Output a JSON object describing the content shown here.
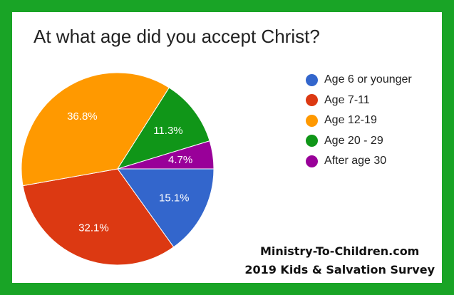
{
  "chart_data": {
    "type": "pie",
    "title": "At what age did you accept Christ?",
    "categories": [
      "Age 6 or younger",
      "Age 7-11",
      "Age 12-19",
      "Age 20 - 29",
      "After age 30"
    ],
    "values": [
      15.1,
      32.1,
      36.8,
      11.3,
      4.7
    ],
    "labels": [
      "15.1%",
      "32.1%",
      "36.8%",
      "11.3%",
      "4.7%"
    ],
    "colors": [
      "#3366cc",
      "#dc3912",
      "#ff9900",
      "#109618",
      "#990099"
    ],
    "legend_position": "right"
  },
  "footer": {
    "line1": "Ministry-To-Children.com",
    "line2": "2019 Kids & Salvation Survey"
  },
  "frame_color": "#19a426"
}
